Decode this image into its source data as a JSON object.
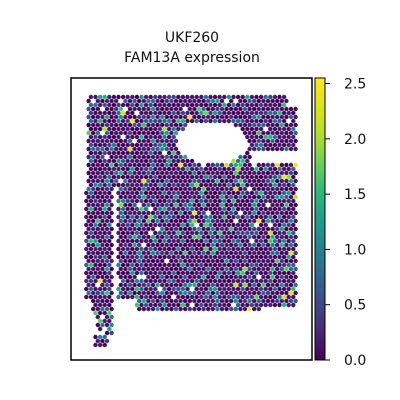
{
  "chart_data": {
    "type": "scatter",
    "subtype": "spatial-hexbin",
    "title_lines": [
      "UKF260",
      "FAM13A expression"
    ],
    "colormap": "viridis",
    "colorbar": {
      "range": [
        0.0,
        2.55
      ],
      "ticks": [
        0.0,
        0.5,
        1.0,
        1.5,
        2.0,
        2.5
      ],
      "tick_labels": [
        "0.0",
        "0.5",
        "1.0",
        "1.5",
        "2.0",
        "2.5"
      ],
      "placement": "right"
    },
    "axes": {
      "x_ticks": false,
      "y_ticks": false,
      "grid": false
    },
    "value_distribution": {
      "min": 0.0,
      "max": 2.5,
      "typical": 0.1,
      "note": "most spots near 0.0; scattered spots 0.5-1.5; few above 2.0"
    }
  }
}
